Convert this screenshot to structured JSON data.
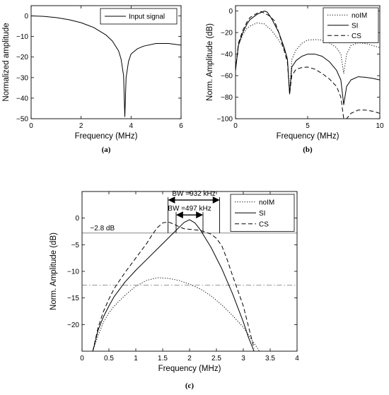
{
  "chart_data": [
    {
      "type": "line",
      "caption": "(a)",
      "xlabel": "Frequency (MHz)",
      "ylabel": "Normalized amplitude",
      "xlim": [
        0,
        6
      ],
      "ylim": [
        -50,
        5
      ],
      "xticks": [
        0,
        2,
        4,
        6
      ],
      "yticks": [
        0,
        -10,
        -20,
        -30,
        -40,
        -50
      ],
      "grid": false,
      "legend_position": "top-right",
      "series": [
        {
          "name": "Input signal",
          "style": "solid",
          "x": [
            0,
            0.5,
            1.0,
            1.5,
            2.0,
            2.5,
            3.0,
            3.25,
            3.5,
            3.6,
            3.7,
            3.75,
            3.8,
            3.9,
            4.0,
            4.25,
            4.5,
            5.0,
            5.5,
            6.0
          ],
          "y": [
            0,
            -0.2,
            -0.8,
            -1.8,
            -3.3,
            -5.6,
            -9.3,
            -12.2,
            -17.0,
            -21.0,
            -29.0,
            -49.0,
            -30.0,
            -22.0,
            -18.5,
            -16.0,
            -14.7,
            -13.4,
            -13.4,
            -14.2
          ]
        }
      ]
    },
    {
      "type": "line",
      "caption": "(b)",
      "xlabel": "Frequency (MHz)",
      "ylabel": "Norm. Amplitude (dB)",
      "xlim": [
        0,
        10
      ],
      "ylim": [
        -100,
        5
      ],
      "xticks": [
        0,
        5,
        10
      ],
      "yticks": [
        0,
        -20,
        -40,
        -60,
        -80,
        -100
      ],
      "grid": false,
      "legend_position": "top-right",
      "series": [
        {
          "name": "noIM",
          "style": "dotted",
          "x": [
            0,
            0.2,
            0.5,
            0.8,
            1.0,
            1.5,
            2.0,
            2.5,
            3.0,
            3.4,
            3.6,
            3.75,
            3.9,
            4.2,
            4.6,
            5.0,
            5.5,
            6.0,
            6.5,
            7.0,
            7.3,
            7.5,
            7.7,
            8.0,
            8.5,
            9.0,
            9.5,
            10.0
          ],
          "y": [
            -55,
            -32,
            -22,
            -16,
            -14,
            -11,
            -12,
            -18,
            -27,
            -36,
            -44,
            -77,
            -45,
            -36,
            -30,
            -27,
            -26.5,
            -27,
            -29.5,
            -34,
            -40,
            -58,
            -40,
            -32,
            -29.5,
            -30,
            -32,
            -34
          ]
        },
        {
          "name": "SI",
          "style": "solid",
          "x": [
            0,
            0.2,
            0.5,
            0.8,
            1.0,
            1.5,
            2.0,
            2.2,
            2.5,
            3.0,
            3.4,
            3.6,
            3.75,
            3.9,
            4.2,
            4.6,
            5.0,
            5.5,
            6.0,
            6.5,
            7.0,
            7.3,
            7.5,
            7.7,
            8.0,
            8.5,
            9.0,
            9.5,
            10.0
          ],
          "y": [
            -55,
            -32,
            -20,
            -12,
            -8,
            -3,
            0,
            -1,
            -7,
            -20,
            -35,
            -45,
            -77,
            -52,
            -46,
            -42,
            -40,
            -40,
            -42,
            -47,
            -55,
            -64,
            -87,
            -70,
            -64,
            -61,
            -61.5,
            -62.5,
            -64
          ]
        },
        {
          "name": "CS",
          "style": "dashed",
          "x": [
            0,
            0.2,
            0.5,
            0.8,
            1.0,
            1.5,
            1.8,
            2.0,
            2.3,
            2.7,
            3.0,
            3.4,
            3.6,
            3.75,
            3.9,
            4.2,
            4.6,
            5.0,
            5.5,
            6.0,
            6.5,
            7.0,
            7.3,
            7.5,
            7.7,
            8.0,
            8.5,
            9.0,
            9.5,
            10.0
          ],
          "y": [
            -55,
            -30,
            -18,
            -10,
            -6,
            -2,
            -0.5,
            -2,
            -4,
            -9,
            -20,
            -38,
            -48,
            -77,
            -60,
            -54,
            -52.5,
            -52,
            -54,
            -58,
            -63,
            -70,
            -80,
            -100,
            -100,
            -95,
            -92,
            -92,
            -93,
            -95
          ]
        }
      ]
    },
    {
      "type": "line",
      "caption": "(c)",
      "xlabel": "Frequency (MHz)",
      "ylabel": "Norm. Amplitude (dB)",
      "xlim": [
        0,
        4
      ],
      "ylim": [
        -25,
        5
      ],
      "xticks": [
        0,
        0.5,
        1,
        1.5,
        2,
        2.5,
        3,
        3.5,
        4
      ],
      "yticks": [
        0,
        -5,
        -10,
        -15,
        -20
      ],
      "grid": false,
      "legend_position": "top-right",
      "series": [
        {
          "name": "noIM",
          "style": "dotted",
          "x": [
            0.2,
            0.3,
            0.4,
            0.5,
            0.6,
            0.8,
            1.0,
            1.2,
            1.4,
            1.6,
            1.8,
            2.0,
            2.2,
            2.4,
            2.6,
            2.8,
            3.0,
            3.2,
            3.3
          ],
          "y": [
            -25,
            -22,
            -19.5,
            -17.8,
            -16.5,
            -14.5,
            -12.8,
            -11.7,
            -11.2,
            -11.3,
            -11.7,
            -12.4,
            -13.3,
            -14.6,
            -16.3,
            -18.3,
            -20.5,
            -23.5,
            -25
          ]
        },
        {
          "name": "SI",
          "style": "solid",
          "x": [
            0.2,
            0.3,
            0.4,
            0.5,
            0.6,
            0.8,
            1.0,
            1.2,
            1.4,
            1.6,
            1.7,
            1.8,
            1.9,
            2.0,
            2.1,
            2.2,
            2.4,
            2.6,
            2.8,
            3.0,
            3.1,
            3.2
          ],
          "y": [
            -25,
            -21,
            -18.5,
            -16.5,
            -14.7,
            -12,
            -9.8,
            -7.8,
            -5.8,
            -3.8,
            -2.8,
            -1.8,
            -0.8,
            -0.3,
            -0.9,
            -2.2,
            -5.5,
            -9.5,
            -14.2,
            -19.5,
            -22.5,
            -25
          ]
        },
        {
          "name": "CS",
          "style": "dashed",
          "x": [
            0.2,
            0.3,
            0.4,
            0.5,
            0.6,
            0.8,
            1.0,
            1.2,
            1.3,
            1.4,
            1.5,
            1.6,
            1.7,
            1.8,
            1.9,
            2.0,
            2.2,
            2.4,
            2.5,
            2.6,
            2.7,
            2.8,
            3.0,
            3.1,
            3.2
          ],
          "y": [
            -25,
            -20.5,
            -17.5,
            -15.2,
            -13.2,
            -10.2,
            -7.5,
            -4.8,
            -3.2,
            -1.8,
            -0.9,
            -0.7,
            -1.1,
            -1.6,
            -2.0,
            -2.1,
            -2.3,
            -3.0,
            -3.8,
            -5.2,
            -7.8,
            -10.8,
            -16.5,
            -20.5,
            -24.5
          ]
        }
      ],
      "reference_lines": [
        {
          "y": -2.8,
          "style": "solid",
          "color": "#888888"
        },
        {
          "y": -12.6,
          "style": "dashdot",
          "color": "#888888"
        }
      ],
      "annotations": {
        "level_label": "−2.8 dB",
        "bw_cs_label": "BW =932 kHz",
        "bw_si_label": "BW =497 kHz",
        "bw_cs_range": [
          1.6,
          2.56
        ],
        "bw_si_range": [
          1.75,
          2.25
        ],
        "bw_cs_arrow_y": 3.4,
        "bw_si_arrow_y": 0.6
      }
    }
  ]
}
